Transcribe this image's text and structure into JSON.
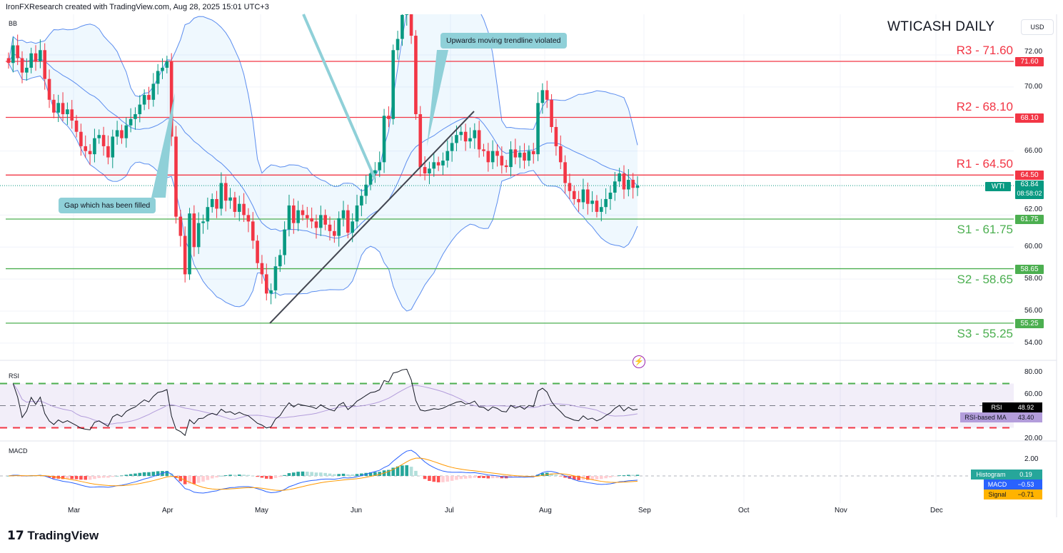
{
  "header": "IronFXResearch created with TradingView.com, Aug 28, 2025 15:01 UTC+3",
  "title": "WTICASH DAILY",
  "currency": "USD",
  "brand": "TradingView",
  "indicator_labels": {
    "bb": "BB",
    "rsi": "RSI",
    "macd": "MACD"
  },
  "annotations": {
    "gap": "Gap which has been filled",
    "trendline": "Upwards moving trendline violated"
  },
  "levels": [
    {
      "name": "R3",
      "value": 71.6,
      "label": "R3 - 71.60",
      "tag": "71.60",
      "color": "#f23645"
    },
    {
      "name": "R2",
      "value": 68.1,
      "label": "R2 - 68.10",
      "tag": "68.10",
      "color": "#f23645"
    },
    {
      "name": "R1",
      "value": 64.5,
      "label": "R1 - 64.50",
      "tag": "64.50",
      "color": "#f23645"
    },
    {
      "name": "S1",
      "value": 61.75,
      "label": "S1 - 61.75",
      "tag": "61.75",
      "color": "#4caf50"
    },
    {
      "name": "S2",
      "value": 58.65,
      "label": "S2 - 58.65",
      "tag": "58.65",
      "color": "#4caf50"
    },
    {
      "name": "S3",
      "value": 55.25,
      "label": "S3 - 55.25",
      "tag": "55.25",
      "color": "#4caf50"
    }
  ],
  "last_price": {
    "symbol": "WTI",
    "value": "63.84",
    "countdown": "08:58:02",
    "color": "#089981"
  },
  "rsi_readout": {
    "rsi_label": "RSI",
    "rsi": "48.92",
    "ma_label": "RSI-based MA",
    "ma": "43.40"
  },
  "macd_readout": {
    "hist_label": "Histogram",
    "hist": "0.19",
    "macd_label": "MACD",
    "macd": "−0.53",
    "signal_label": "Signal",
    "signal": "−0.71"
  },
  "chart_data": [
    {
      "type": "candlestick",
      "title": "WTICASH DAILY",
      "start": "2025-02-10",
      "end": "2025-08-28",
      "ylim": [
        53,
        76
      ],
      "price_ticks": [
        "72.00",
        "70.00",
        "66.00",
        "62.00",
        "60.00",
        "58.00",
        "56.00",
        "54.00"
      ],
      "x_ticks": [
        "Mar",
        "Apr",
        "May",
        "Jun",
        "Jul",
        "Aug",
        "Sep",
        "Oct",
        "Nov",
        "Dec"
      ],
      "closes": [
        71.5,
        72.6,
        71.8,
        70.9,
        71.2,
        72.1,
        71.6,
        72.3,
        70.5,
        69.2,
        68.4,
        69.0,
        68.3,
        68.6,
        67.9,
        67.2,
        66.3,
        66.0,
        65.8,
        66.8,
        67.0,
        66.3,
        65.6,
        66.9,
        67.3,
        66.8,
        67.6,
        68.0,
        68.3,
        68.9,
        69.5,
        69.2,
        70.2,
        71.0,
        71.2,
        71.6,
        66.9,
        61.9,
        60.7,
        58.3,
        62.1,
        60.0,
        61.5,
        61.6,
        62.5,
        63.0,
        62.4,
        64.0,
        62.9,
        63.1,
        62.2,
        62.7,
        62.0,
        61.6,
        60.4,
        59.0,
        58.3,
        57.1,
        57.3,
        58.8,
        59.5,
        61.1,
        62.6,
        61.5,
        62.3,
        62.0,
        61.8,
        61.6,
        61.2,
        62.0,
        61.4,
        61.0,
        60.7,
        61.8,
        62.3,
        60.9,
        61.6,
        62.6,
        63.2,
        63.9,
        64.6,
        64.8,
        65.3,
        68.2,
        68.0,
        72.3,
        73.0,
        74.5,
        75.0,
        73.2,
        68.3,
        65.0,
        64.6,
        64.9,
        65.3,
        65.1,
        65.4,
        66.0,
        66.5,
        67.0,
        67.2,
        66.6,
        66.8,
        67.3,
        66.1,
        66.0,
        65.3,
        66.0,
        65.7,
        65.1,
        65.0,
        66.1,
        65.6,
        65.9,
        65.4,
        66.0,
        65.8,
        69.0,
        69.8,
        69.2,
        67.5,
        66.3,
        65.3,
        64.0,
        63.5,
        63.0,
        62.8,
        63.6,
        62.7,
        62.9,
        62.2,
        62.5,
        63.0,
        63.4,
        64.1,
        64.6,
        63.6,
        64.2,
        63.7,
        63.84
      ],
      "overlay": "Bollinger Bands (20, 2)"
    },
    {
      "type": "line",
      "title": "RSI",
      "ylim": [
        20,
        80
      ],
      "ticks": [
        "80.00",
        "60.00",
        "20.00"
      ],
      "bands": [
        30,
        70
      ],
      "last": 48.92,
      "ma_last": 43.4
    },
    {
      "type": "bar",
      "title": "MACD",
      "ticks": [
        "2.00"
      ],
      "histogram_last": 0.19,
      "macd_last": -0.53,
      "signal_last": -0.71
    }
  ]
}
